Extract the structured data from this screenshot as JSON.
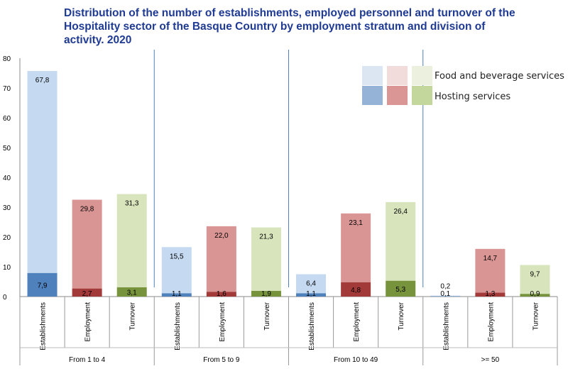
{
  "title": "Distribution of the number of establishments, employed personnel and turnover of the Hospitality sector of the Basque Country by employment stratum and division of activity. 2020",
  "chart_data": {
    "type": "bar",
    "stacked": true,
    "ylim": [
      0,
      80
    ],
    "yticks": [
      0,
      10,
      20,
      30,
      40,
      50,
      60,
      70,
      80
    ],
    "groups": [
      "From 1 to 4",
      "From 5 to 9",
      "From 10 to 49",
      ">= 50"
    ],
    "categories": [
      "Establishments",
      "Employment",
      "Turnover"
    ],
    "legend_position": "top-right",
    "series": [
      {
        "name": "Hosting services",
        "values": [
          [
            7.9,
            2.7,
            3.1
          ],
          [
            1.1,
            1.6,
            1.9
          ],
          [
            1.1,
            4.8,
            5.3
          ],
          [
            0.1,
            1.3,
            0.9
          ]
        ],
        "labels": [
          [
            "7,9",
            "2,7",
            "3,1"
          ],
          [
            "1,1",
            "1,6",
            "1,9"
          ],
          [
            "1,1",
            "4,8",
            "5,3"
          ],
          [
            "0,1",
            "1,3",
            "0,9"
          ]
        ]
      },
      {
        "name": "Food and beverage services",
        "values": [
          [
            67.8,
            29.8,
            31.3
          ],
          [
            15.5,
            22.0,
            21.3
          ],
          [
            6.4,
            23.1,
            26.4
          ],
          [
            0.2,
            14.7,
            9.7
          ]
        ],
        "labels": [
          [
            "67,8",
            "29,8",
            "31,3"
          ],
          [
            "15,5",
            "22,0",
            "21,3"
          ],
          [
            "6,4",
            "23,1",
            "26,4"
          ],
          [
            "0,2",
            "14,7",
            "9,7"
          ]
        ]
      }
    ],
    "colors": {
      "food": [
        "#c5d9f1",
        "#d99594",
        "#d7e4bc"
      ],
      "hosting": [
        "#4f81bd",
        "#a33a3a",
        "#77933c"
      ],
      "legend_food": [
        "#dce6f2",
        "#f2dcdb",
        "#ebf1de"
      ],
      "legend_hosting": [
        "#95b3d7",
        "#d99694",
        "#c3d69b"
      ],
      "divider": "#4f81bd"
    }
  }
}
